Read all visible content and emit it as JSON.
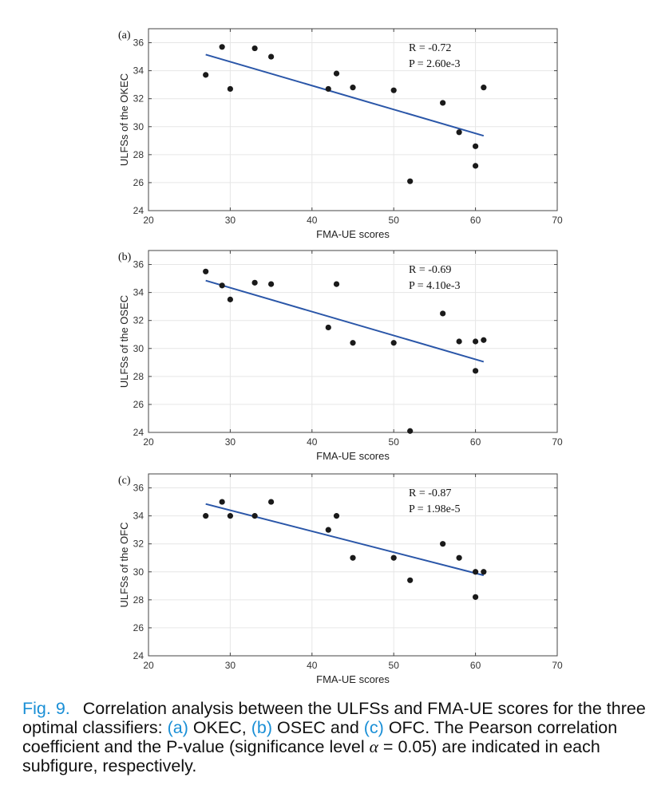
{
  "chart_data": [
    {
      "type": "scatter",
      "panel_label": "(a)",
      "xlabel": "FMA-UE scores",
      "ylabel": "ULFSs of the OKEC",
      "xlim": [
        20,
        70
      ],
      "ylim": [
        24,
        37
      ],
      "xticks": [
        20,
        30,
        40,
        50,
        60,
        70
      ],
      "yticks": [
        24,
        26,
        28,
        30,
        32,
        34,
        36
      ],
      "grid": true,
      "points": {
        "x": [
          27,
          29,
          30,
          33,
          35,
          42,
          43,
          45,
          50,
          52,
          56,
          58,
          60,
          60,
          61
        ],
        "y": [
          33.7,
          35.7,
          32.7,
          35.6,
          35.0,
          32.7,
          33.8,
          32.8,
          32.6,
          26.1,
          31.7,
          29.6,
          28.6,
          27.2,
          32.8
        ]
      },
      "fit_line": {
        "x": [
          27,
          61
        ],
        "y": [
          35.15,
          29.35
        ]
      },
      "annotations": [
        "R = -0.72",
        "P = 2.60e-3"
      ]
    },
    {
      "type": "scatter",
      "panel_label": "(b)",
      "xlabel": "FMA-UE scores",
      "ylabel": "ULFSs of the OSEC",
      "xlim": [
        20,
        70
      ],
      "ylim": [
        24,
        37
      ],
      "xticks": [
        20,
        30,
        40,
        50,
        60,
        70
      ],
      "yticks": [
        24,
        26,
        28,
        30,
        32,
        34,
        36
      ],
      "grid": true,
      "points": {
        "x": [
          27,
          29,
          30,
          33,
          35,
          42,
          43,
          45,
          50,
          52,
          56,
          58,
          60,
          60,
          61
        ],
        "y": [
          35.5,
          34.5,
          33.5,
          34.7,
          34.6,
          31.5,
          34.6,
          30.4,
          30.4,
          24.1,
          32.5,
          30.5,
          30.5,
          28.4,
          30.6
        ]
      },
      "fit_line": {
        "x": [
          27,
          61
        ],
        "y": [
          34.85,
          29.05
        ]
      },
      "annotations": [
        "R = -0.69",
        "P = 4.10e-3"
      ]
    },
    {
      "type": "scatter",
      "panel_label": "(c)",
      "xlabel": "FMA-UE scores",
      "ylabel": "ULFSs of the OFC",
      "xlim": [
        20,
        70
      ],
      "ylim": [
        24,
        37
      ],
      "xticks": [
        20,
        30,
        40,
        50,
        60,
        70
      ],
      "yticks": [
        24,
        26,
        28,
        30,
        32,
        34,
        36
      ],
      "grid": true,
      "points": {
        "x": [
          27,
          29,
          30,
          33,
          35,
          42,
          43,
          45,
          50,
          52,
          56,
          58,
          60,
          60,
          61
        ],
        "y": [
          34.0,
          35.0,
          34.0,
          34.0,
          35.0,
          33.0,
          34.0,
          31.0,
          31.0,
          29.4,
          32.0,
          31.0,
          30.0,
          28.2,
          30.0
        ]
      },
      "fit_line": {
        "x": [
          27,
          61
        ],
        "y": [
          34.85,
          29.75
        ]
      },
      "annotations": [
        "R = -0.87",
        "P = 1.98e-5"
      ]
    }
  ],
  "caption": {
    "fig_label": "Fig. 9.",
    "part1": "Correlation analysis between the ULFSs and FMA-UE scores for the three optimal classifiers: ",
    "link_a": "(a)",
    "part2": " OKEC, ",
    "link_b": "(b)",
    "part3": " OSEC and ",
    "link_c": "(c)",
    "part4": " OFC. The Pearson correlation coefficient and the P-value (significance level ",
    "alpha_symbol": "α",
    "part5": " = 0.05) are indicated in each subfigure, respectively."
  },
  "colors": {
    "points": "#1a1a1a",
    "fit_line": "#2a56a8",
    "grid": "#e6e6e6",
    "axis": "#444444",
    "caption_link": "#1a8fd6"
  }
}
